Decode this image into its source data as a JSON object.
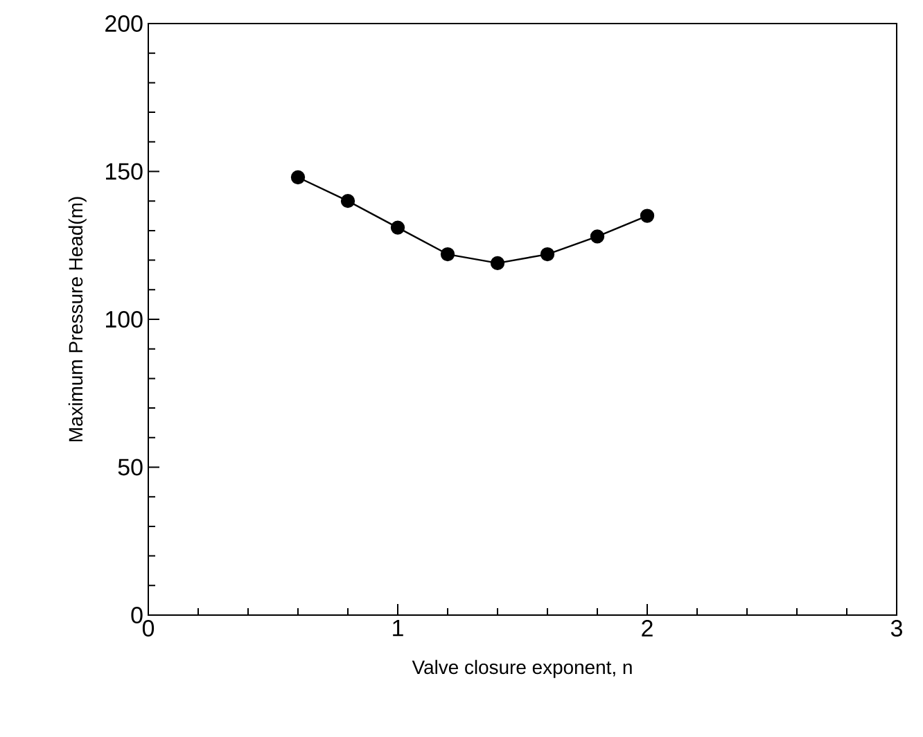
{
  "chart_data": {
    "type": "line",
    "xlabel": "Valve closure  exponent, n",
    "ylabel": "Maximum  Pressure  Head(m)",
    "xlim": [
      0,
      3
    ],
    "ylim": [
      0,
      200
    ],
    "xticks": [
      0,
      1,
      2,
      3
    ],
    "yticks": [
      0,
      50,
      100,
      150,
      200
    ],
    "marker": "circle",
    "line_style": "solid",
    "series": [
      {
        "color": "#000000",
        "x": [
          0.6,
          0.8,
          1.0,
          1.2,
          1.4,
          1.6,
          1.8,
          2.0
        ],
        "values": [
          148,
          140,
          131,
          122,
          119,
          122,
          128,
          135
        ]
      }
    ]
  }
}
